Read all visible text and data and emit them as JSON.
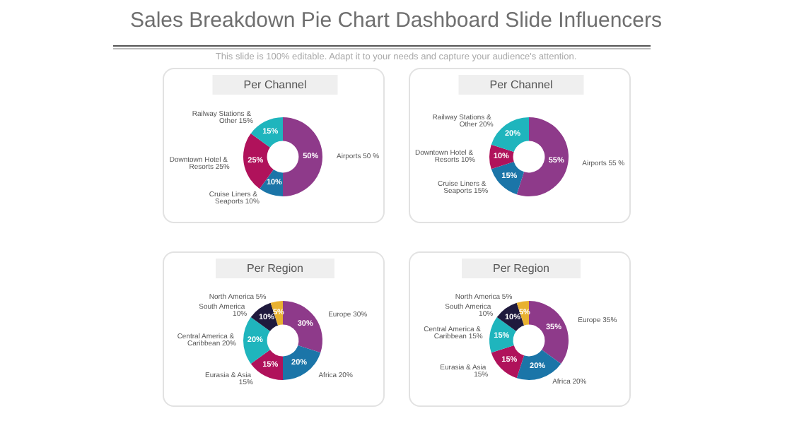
{
  "chart_data": [
    {
      "type": "donut",
      "title": "Per Channel",
      "annotations": [
        "Sales Breakdown Pie Chart Dashboard Slide Influencers",
        "This slide is 100% editable. Adapt it to your needs and capture your audience's attention."
      ],
      "categories": [
        "Airports 50 %",
        "Cruise Liners & Seaports 10%",
        "Downtown Hotel & Resorts 25%",
        "Railway Stations & Other 15%"
      ],
      "values": [
        50,
        10,
        25,
        15
      ],
      "value_labels": [
        "50%",
        "10%",
        "25%",
        "15%"
      ],
      "colors": [
        "#8e3a8a",
        "#1b75a8",
        "#b0125b",
        "#1fb5bd"
      ],
      "legend": false
    },
    {
      "type": "donut",
      "title": "Per Channel",
      "categories": [
        "Airports 55 %",
        "Cruise Liners & Seaports 15%",
        "Downtown Hotel & Resorts 10%",
        "Railway Stations & Other 20%"
      ],
      "values": [
        55,
        15,
        10,
        20
      ],
      "value_labels": [
        "55%",
        "15%",
        "10%",
        "20%"
      ],
      "colors": [
        "#8e3a8a",
        "#1b75a8",
        "#b0125b",
        "#1fb5bd"
      ],
      "legend": false
    },
    {
      "type": "donut",
      "title": "Per Region",
      "categories": [
        "Europe 30%",
        "Africa 20%",
        "Eurasia & Asia 15%",
        "Central America & Caribbean 20%",
        "South America 10%",
        "North America 5%"
      ],
      "values": [
        30,
        20,
        15,
        20,
        10,
        5
      ],
      "value_labels": [
        "30%",
        "20%",
        "15%",
        "20%",
        "10%",
        "5%"
      ],
      "colors": [
        "#8e3a8a",
        "#1b75a8",
        "#b0125b",
        "#1fb5bd",
        "#1f1a3d",
        "#e8b130"
      ],
      "legend": false
    },
    {
      "type": "donut",
      "title": "Per Region",
      "categories": [
        "Europe 35%",
        "Africa 20%",
        "Eurasia & Asia 15%",
        "Central America & Caribbean 15%",
        "South America 10%",
        "North America 5%"
      ],
      "values": [
        35,
        20,
        15,
        15,
        10,
        5
      ],
      "value_labels": [
        "35%",
        "20%",
        "15%",
        "15%",
        "10%",
        "5%"
      ],
      "colors": [
        "#8e3a8a",
        "#1b75a8",
        "#b0125b",
        "#1fb5bd",
        "#1f1a3d",
        "#e8b130"
      ],
      "legend": false
    }
  ]
}
